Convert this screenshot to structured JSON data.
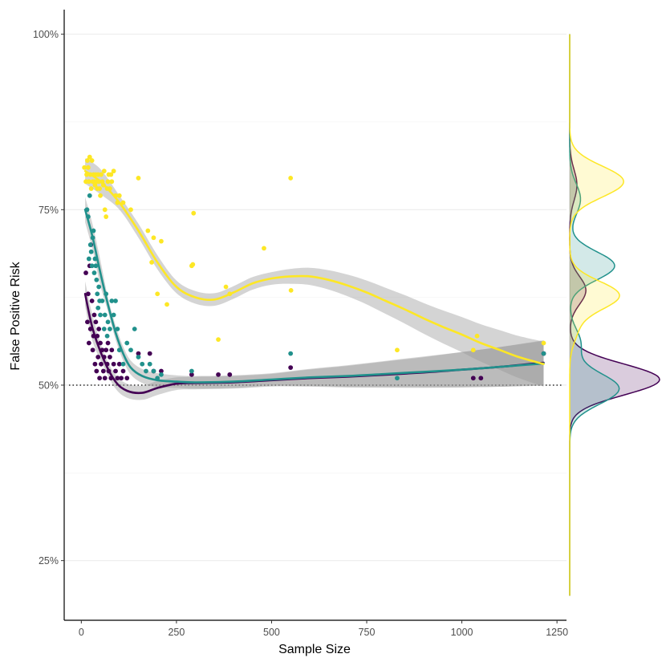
{
  "chart_data": {
    "type": "scatter",
    "xlabel": "Sample Size",
    "ylabel": "False Positive Risk",
    "xlim": [
      -45,
      1275
    ],
    "ylim": [
      16.5,
      103.5
    ],
    "x_ticks": [
      0,
      250,
      500,
      750,
      1000,
      1250
    ],
    "x_tick_labels": [
      "0",
      "250",
      "500",
      "750",
      "1000",
      "1250"
    ],
    "y_ticks": [
      25,
      50,
      75,
      100
    ],
    "y_tick_labels": [
      "25%",
      "50%",
      "75%",
      "100%"
    ],
    "y_minor_gridlines": [
      37.5,
      62.5,
      87.5
    ],
    "grid": "horizontal",
    "reference_line": {
      "y": 50,
      "style": "dotted"
    },
    "legend": "none",
    "series": [
      {
        "color": "#440154",
        "points": [
          [
            12,
            66
          ],
          [
            16,
            59
          ],
          [
            18,
            63
          ],
          [
            20,
            56
          ],
          [
            22,
            67
          ],
          [
            24,
            58
          ],
          [
            25,
            70
          ],
          [
            28,
            62
          ],
          [
            30,
            55
          ],
          [
            32,
            57
          ],
          [
            34,
            60
          ],
          [
            36,
            53
          ],
          [
            38,
            59
          ],
          [
            40,
            52
          ],
          [
            42,
            57
          ],
          [
            44,
            54
          ],
          [
            46,
            58
          ],
          [
            48,
            51
          ],
          [
            50,
            56
          ],
          [
            52,
            53
          ],
          [
            55,
            55
          ],
          [
            58,
            52
          ],
          [
            60,
            54
          ],
          [
            62,
            51
          ],
          [
            65,
            55
          ],
          [
            68,
            53
          ],
          [
            70,
            56
          ],
          [
            72,
            52
          ],
          [
            75,
            54
          ],
          [
            78,
            51
          ],
          [
            80,
            55
          ],
          [
            85,
            53
          ],
          [
            90,
            52
          ],
          [
            95,
            51
          ],
          [
            100,
            53
          ],
          [
            105,
            51
          ],
          [
            110,
            52
          ],
          [
            120,
            51
          ],
          [
            150,
            54.5
          ],
          [
            180,
            54.5
          ],
          [
            190,
            52
          ],
          [
            210,
            52
          ],
          [
            290,
            51.5
          ],
          [
            360,
            51.5
          ],
          [
            390,
            51.5
          ],
          [
            550,
            52.5
          ],
          [
            1030,
            51
          ],
          [
            1050,
            51
          ],
          [
            1215,
            54.5
          ]
        ],
        "trend": [
          [
            10,
            63
          ],
          [
            30,
            58
          ],
          [
            60,
            53.5
          ],
          [
            90,
            50.5
          ],
          [
            120,
            49.2
          ],
          [
            160,
            48.9
          ],
          [
            200,
            49.6
          ],
          [
            250,
            50.2
          ],
          [
            300,
            50.3
          ],
          [
            400,
            50.4
          ],
          [
            500,
            50.7
          ],
          [
            600,
            51
          ],
          [
            700,
            51.2
          ],
          [
            800,
            51.5
          ],
          [
            900,
            51.8
          ],
          [
            1000,
            52.2
          ],
          [
            1100,
            52.6
          ],
          [
            1215,
            53.2
          ]
        ],
        "density_peaks": [
          [
            50.8,
            1.0
          ],
          [
            63.5,
            0.18
          ],
          [
            78.5,
            0.08
          ]
        ]
      },
      {
        "color": "#21918c",
        "points": [
          [
            15,
            75
          ],
          [
            18,
            74
          ],
          [
            20,
            68
          ],
          [
            22,
            77
          ],
          [
            24,
            70
          ],
          [
            26,
            69
          ],
          [
            28,
            67
          ],
          [
            30,
            71
          ],
          [
            32,
            72
          ],
          [
            34,
            66
          ],
          [
            36,
            68
          ],
          [
            38,
            67
          ],
          [
            40,
            65
          ],
          [
            42,
            63
          ],
          [
            44,
            61
          ],
          [
            46,
            64
          ],
          [
            48,
            62
          ],
          [
            50,
            60
          ],
          [
            55,
            62
          ],
          [
            60,
            58
          ],
          [
            62,
            60
          ],
          [
            65,
            63
          ],
          [
            68,
            57
          ],
          [
            70,
            59
          ],
          [
            75,
            58
          ],
          [
            80,
            62
          ],
          [
            85,
            60
          ],
          [
            90,
            62
          ],
          [
            95,
            58
          ],
          [
            100,
            55
          ],
          [
            110,
            53
          ],
          [
            120,
            56
          ],
          [
            130,
            55
          ],
          [
            140,
            58
          ],
          [
            150,
            54
          ],
          [
            160,
            53
          ],
          [
            170,
            52
          ],
          [
            180,
            53
          ],
          [
            190,
            52
          ],
          [
            200,
            51
          ],
          [
            210,
            51.5
          ],
          [
            290,
            52
          ],
          [
            550,
            54.5
          ],
          [
            830,
            51
          ],
          [
            1215,
            54.5
          ]
        ],
        "trend": [
          [
            10,
            75
          ],
          [
            30,
            71
          ],
          [
            50,
            66
          ],
          [
            70,
            61.5
          ],
          [
            90,
            57.5
          ],
          [
            110,
            54.5
          ],
          [
            130,
            52.5
          ],
          [
            160,
            51.3
          ],
          [
            200,
            50.7
          ],
          [
            250,
            50.5
          ],
          [
            300,
            50.4
          ],
          [
            400,
            50.5
          ],
          [
            500,
            50.8
          ],
          [
            600,
            51.1
          ],
          [
            700,
            51.3
          ],
          [
            800,
            51.6
          ],
          [
            900,
            51.9
          ],
          [
            1000,
            52.2
          ],
          [
            1100,
            52.6
          ],
          [
            1215,
            53.1
          ]
        ],
        "density_peaks": [
          [
            49.5,
            0.55
          ],
          [
            56,
            0.12
          ],
          [
            67,
            0.5
          ],
          [
            76.5,
            0.12
          ]
        ]
      },
      {
        "color": "#fde725",
        "points": [
          [
            8,
            81
          ],
          [
            12,
            79
          ],
          [
            14,
            80
          ],
          [
            16,
            82
          ],
          [
            18,
            81
          ],
          [
            20,
            79
          ],
          [
            22,
            82.5
          ],
          [
            24,
            80
          ],
          [
            26,
            78
          ],
          [
            28,
            82
          ],
          [
            30,
            79
          ],
          [
            32,
            80
          ],
          [
            34,
            79
          ],
          [
            36,
            78.5
          ],
          [
            38,
            80
          ],
          [
            40,
            79
          ],
          [
            42,
            78
          ],
          [
            44,
            80
          ],
          [
            46,
            79
          ],
          [
            48,
            78
          ],
          [
            50,
            77
          ],
          [
            52,
            80
          ],
          [
            55,
            79
          ],
          [
            58,
            78.5
          ],
          [
            60,
            80.5
          ],
          [
            62,
            75
          ],
          [
            65,
            74
          ],
          [
            68,
            78
          ],
          [
            70,
            79
          ],
          [
            72,
            80
          ],
          [
            75,
            78
          ],
          [
            78,
            80
          ],
          [
            80,
            79
          ],
          [
            85,
            80.5
          ],
          [
            90,
            77
          ],
          [
            95,
            76
          ],
          [
            100,
            77
          ],
          [
            110,
            76
          ],
          [
            130,
            75
          ],
          [
            150,
            79.5
          ],
          [
            175,
            72
          ],
          [
            185,
            67.5
          ],
          [
            190,
            71
          ],
          [
            200,
            63
          ],
          [
            210,
            70.5
          ],
          [
            225,
            61.5
          ],
          [
            290,
            67
          ],
          [
            293,
            67.2
          ],
          [
            295,
            74.5
          ],
          [
            360,
            56.5
          ],
          [
            380,
            64
          ],
          [
            390,
            63
          ],
          [
            480,
            69.5
          ],
          [
            550,
            79.5
          ],
          [
            551,
            63.5
          ],
          [
            830,
            55
          ],
          [
            1030,
            55
          ],
          [
            1040,
            57
          ],
          [
            1215,
            56
          ]
        ],
        "trend": [
          [
            10,
            80.5
          ],
          [
            50,
            79
          ],
          [
            100,
            76
          ],
          [
            150,
            72
          ],
          [
            200,
            67.5
          ],
          [
            250,
            64
          ],
          [
            300,
            62.5
          ],
          [
            350,
            62.2
          ],
          [
            400,
            63.2
          ],
          [
            450,
            64.5
          ],
          [
            500,
            65.2
          ],
          [
            550,
            65.5
          ],
          [
            600,
            65.5
          ],
          [
            650,
            65
          ],
          [
            700,
            64.2
          ],
          [
            750,
            63.2
          ],
          [
            800,
            62
          ],
          [
            850,
            60.8
          ],
          [
            900,
            59.5
          ],
          [
            950,
            58.3
          ],
          [
            1000,
            57.2
          ],
          [
            1050,
            56
          ],
          [
            1100,
            55
          ],
          [
            1150,
            54
          ],
          [
            1215,
            53
          ]
        ],
        "density_peaks": [
          [
            58,
            0.08
          ],
          [
            62.8,
            0.55
          ],
          [
            79,
            0.6
          ]
        ]
      }
    ]
  }
}
